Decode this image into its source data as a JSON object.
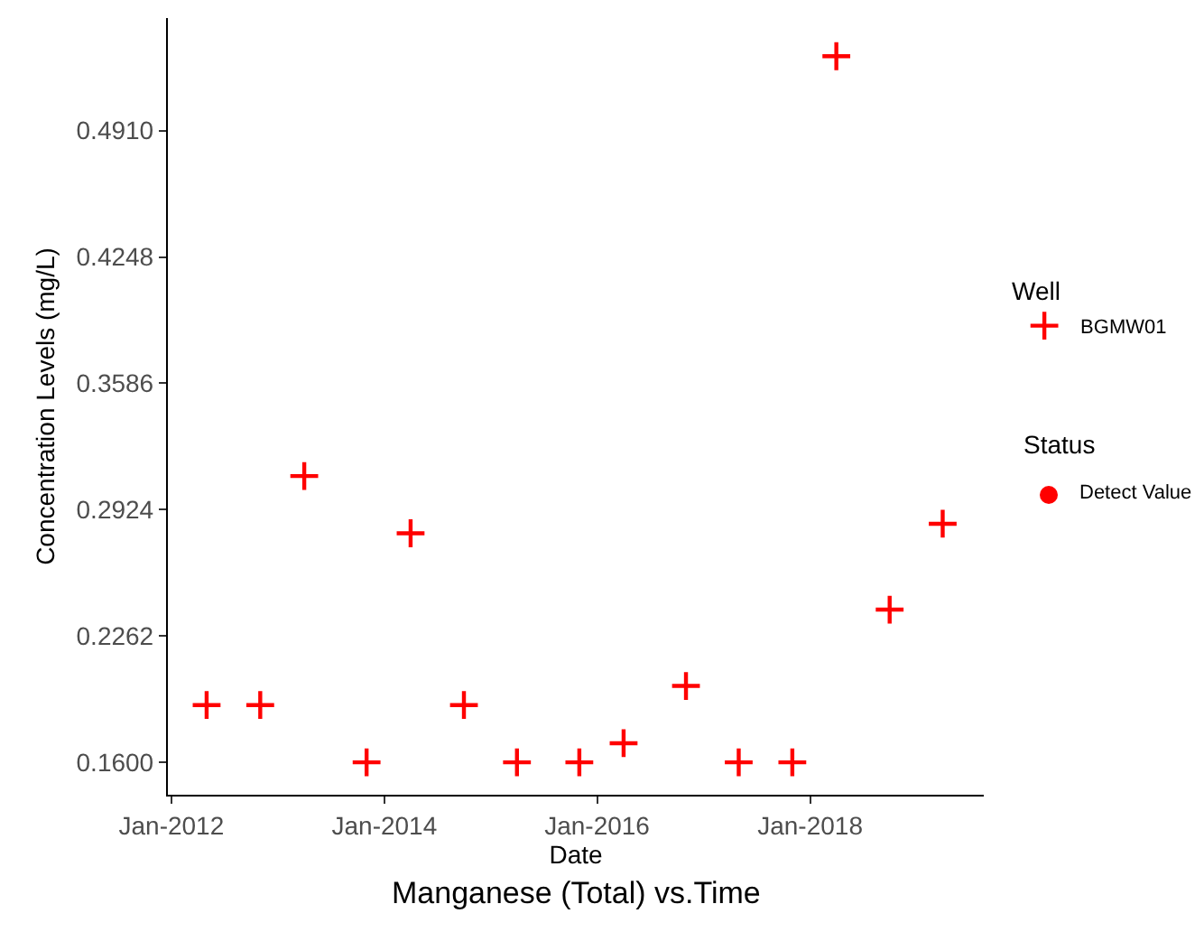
{
  "chart_data": {
    "type": "scatter",
    "title": "Manganese (Total) vs.Time",
    "xlabel": "Date",
    "ylabel": "Concentration Levels (mg/L)",
    "legend_title": "Well",
    "annotations": [
      "Status",
      "Detect Value"
    ],
    "x": [
      "2012-05",
      "2012-11",
      "2013-04",
      "2013-11",
      "2014-04",
      "2014-10",
      "2015-04",
      "2015-11",
      "2016-04",
      "2016-11",
      "2017-05",
      "2017-11",
      "2018-04",
      "2018-10",
      "2019-04"
    ],
    "series": [
      {
        "name": "BGMW01",
        "color": "#ff0000",
        "values": [
          0.19,
          0.19,
          0.31,
          0.16,
          0.28,
          0.19,
          0.16,
          0.16,
          0.17,
          0.2,
          0.16,
          0.16,
          0.53,
          0.24,
          0.285
        ]
      }
    ],
    "marker": "cross",
    "legend": "right",
    "grid": false,
    "xlim": [
      "2011-12-20",
      "2019-08-20"
    ],
    "xticks": [
      {
        "value": "2012-01-01",
        "label": "Jan-2012"
      },
      {
        "value": "2014-01-01",
        "label": "Jan-2014"
      },
      {
        "value": "2016-01-01",
        "label": "Jan-2016"
      },
      {
        "value": "2018-01-01",
        "label": "Jan-2018"
      }
    ],
    "ylim": [
      0.143,
      0.55
    ],
    "yticks": [
      {
        "value": 0.16,
        "label": "0.1600"
      },
      {
        "value": 0.2262,
        "label": "0.2262"
      },
      {
        "value": 0.2924,
        "label": "0.2924"
      },
      {
        "value": 0.3586,
        "label": "0.3586"
      },
      {
        "value": 0.4248,
        "label": "0.4248"
      },
      {
        "value": 0.491,
        "label": "0.4910"
      }
    ]
  }
}
